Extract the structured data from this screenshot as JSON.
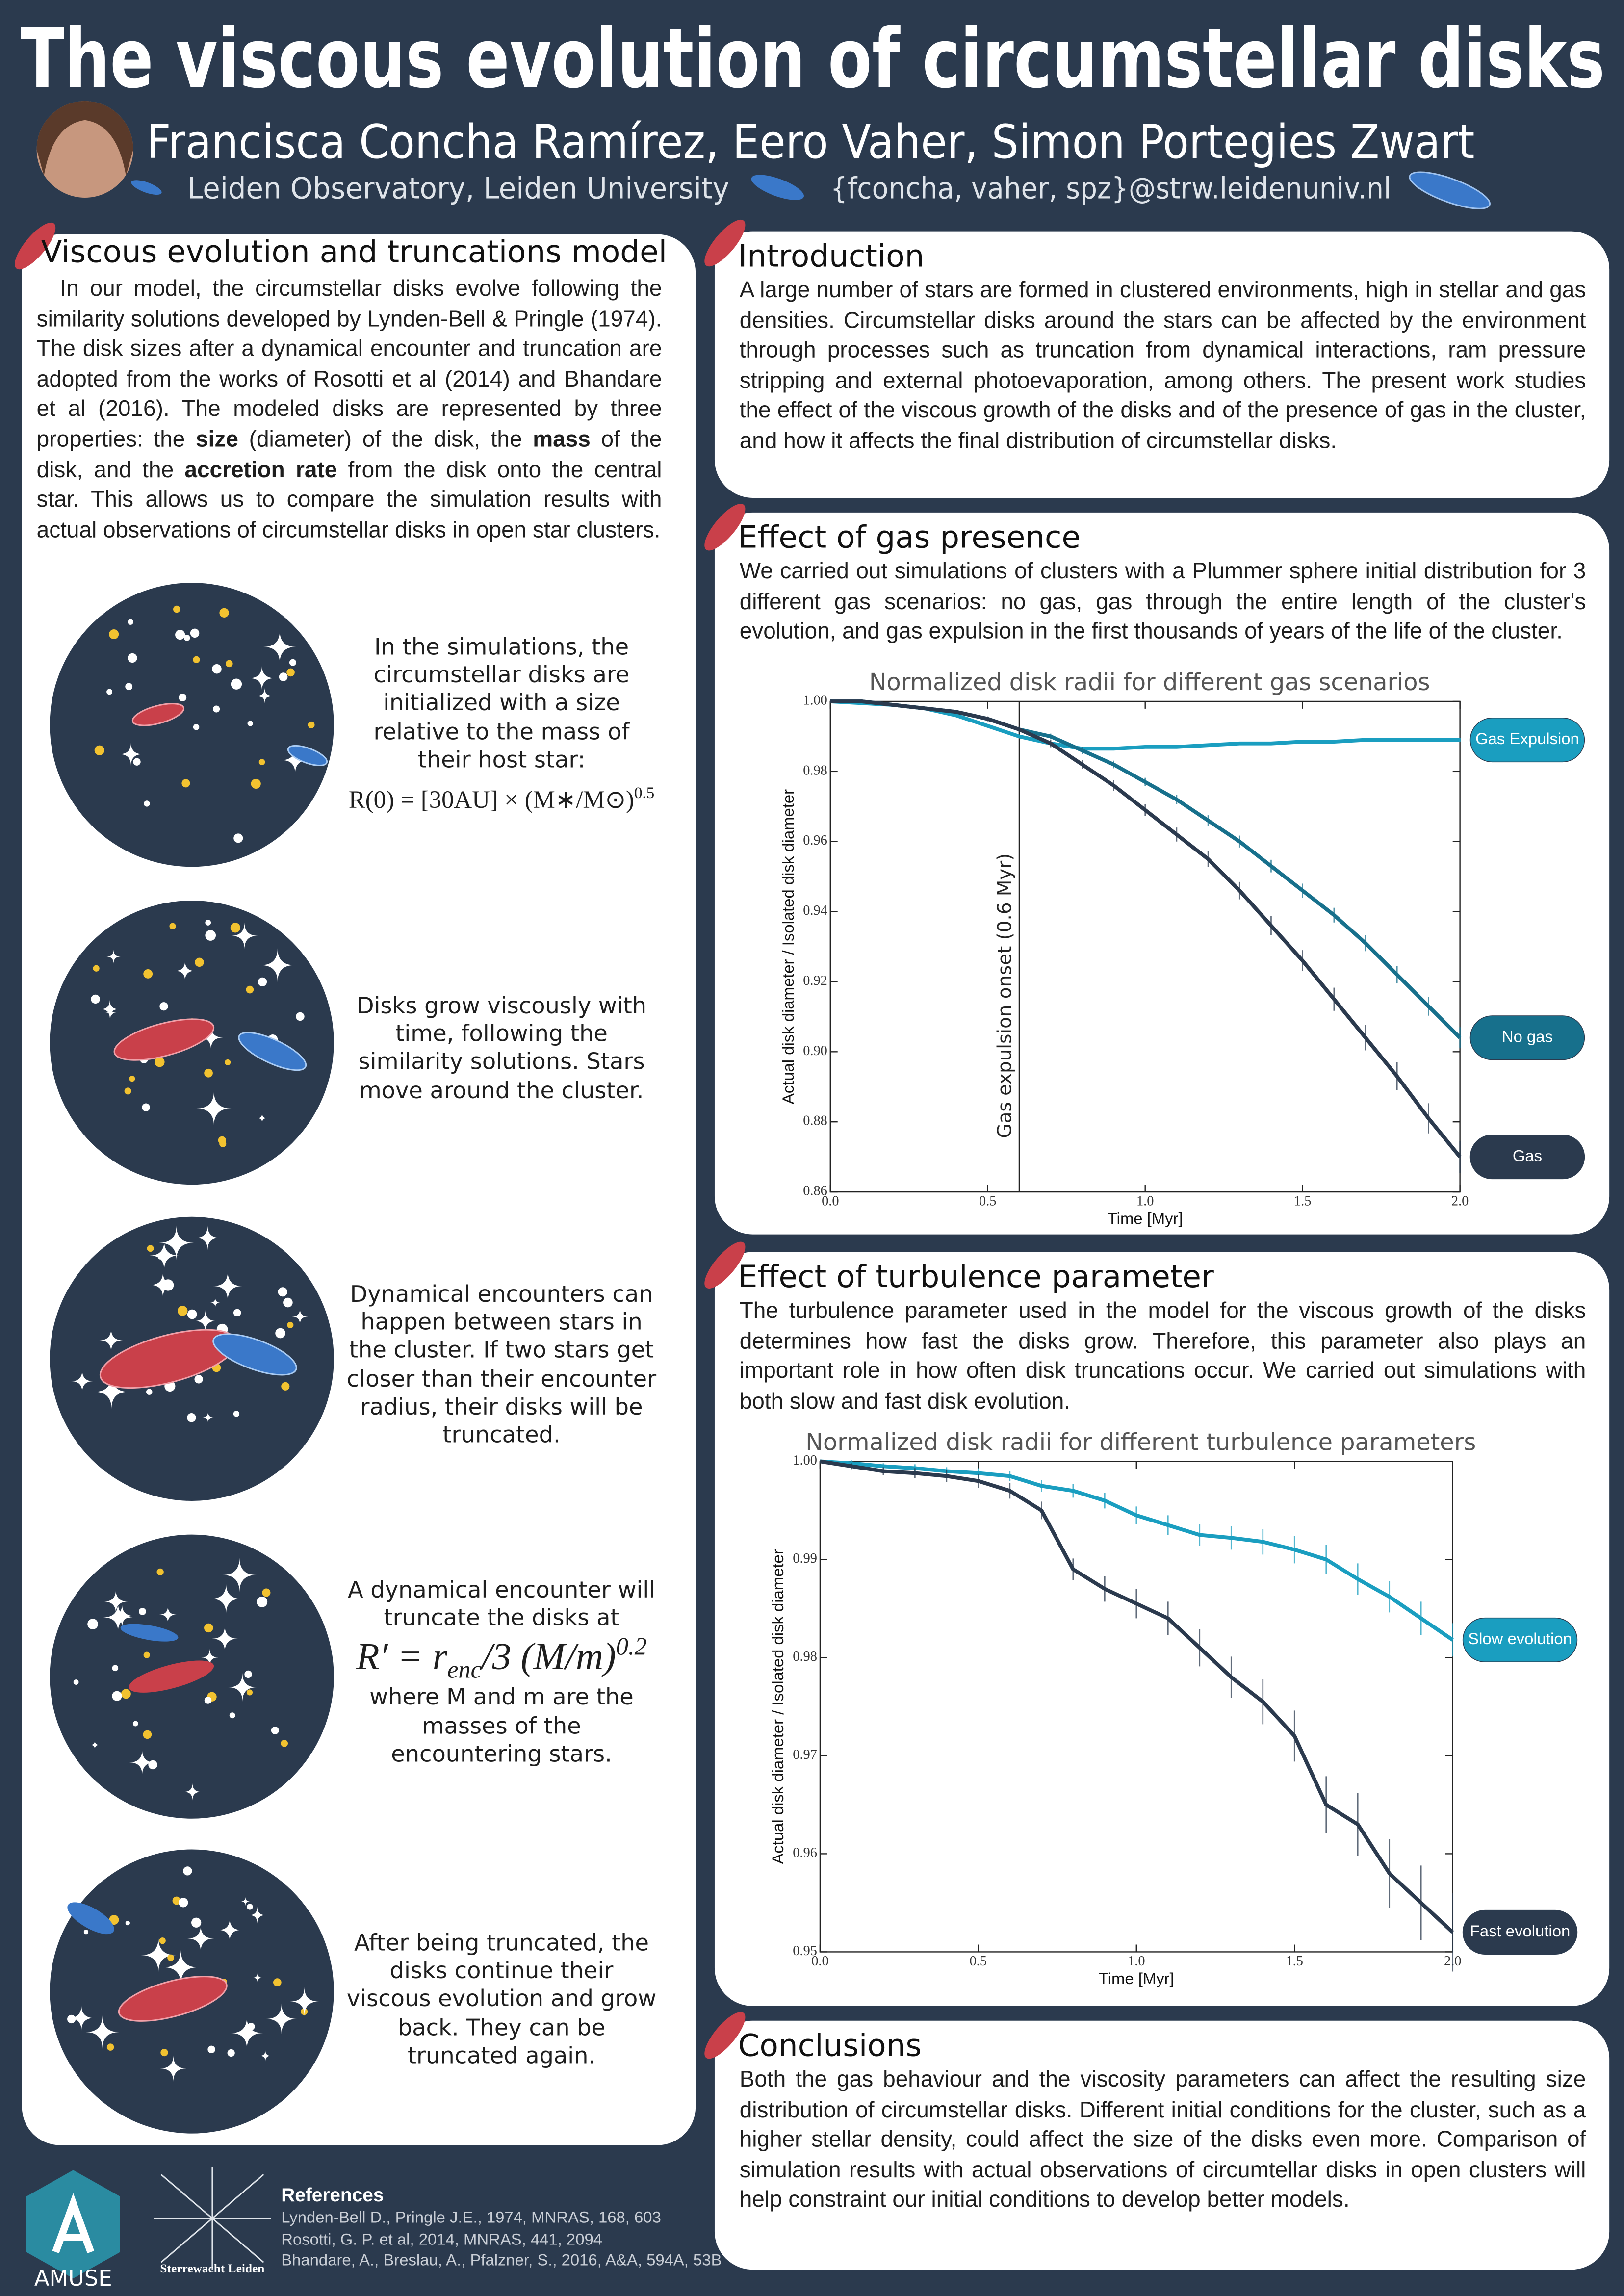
{
  "header": {
    "title": "The viscous evolution of circumstellar disks",
    "authors": "Francisca Concha Ramírez, Eero Vaher, Simon Portegies Zwart",
    "affiliation": "Leiden Observatory, Leiden University",
    "emails": "{fconcha, vaher, spz}@strw.leidenuniv.nl"
  },
  "sections": {
    "model": {
      "heading": "Viscous evolution and truncations model",
      "paragraph": [
        "In our model, the circumstellar disks evolve following the similarity solutions developed by Lynden-Bell & Pringle (1974). The disk sizes after a dynamical encounter and truncation are adopted from the works of Rosotti et al (2014) and Bhandare et al (2016). The modeled disks are represented by three properties: the ",
        "size",
        " (diameter) of the disk, the ",
        "mass",
        " of the disk, and the ",
        "accretion rate",
        " from the disk onto the central star. This allows us to compare the simulation results with actual observations of circumstellar disks in open star clusters."
      ],
      "panels": [
        {
          "text": "In the simulations, the circumstellar disks are initialized with a size relative to the mass of their host star:",
          "formula": [
            "R(0) = [30AU] × (M∗/M⊙)",
            "0.5"
          ]
        },
        {
          "text": "Disks grow viscously with time, following the similarity solutions. Stars move around the cluster."
        },
        {
          "text": "Dynamical encounters can happen between stars in the cluster. If two stars get closer than their encounter radius, their disks will be truncated."
        },
        {
          "text": "A dynamical encounter will truncate the disks at",
          "formula": [
            "R′ = r",
            "enc",
            "/3 (M/m)",
            "0.2"
          ],
          "text_after": "where M and m are the masses of the encountering stars."
        },
        {
          "text": "After being truncated, the disks continue their viscous evolution and grow back. They can be truncated again."
        }
      ]
    },
    "introduction": {
      "heading": "Introduction",
      "text": "A large number of stars are formed in clustered environments, high in stellar and gas densities. Circumstellar disks around the stars can be affected by the environment through processes such as truncation from dynamical interactions, ram pressure stripping and external photoevaporation, among others. The present work studies the effect of the viscous growth of the disks and of the presence of gas in the cluster, and how it affects the final distribution of circumstellar disks."
    },
    "gas": {
      "heading": "Effect of gas presence",
      "text": "We carried out simulations of clusters with a Plummer sphere initial distribution for 3 different gas scenarios: no gas, gas through the entire length of the cluster's evolution, and gas expulsion in the first thousands of years of the life of the cluster."
    },
    "turbulence": {
      "heading": "Effect of turbulence parameter",
      "text": "The turbulence parameter used in the model for the viscous growth of the disks determines how fast the disks grow. Therefore, this parameter also plays an important role in how often disk truncations occur. We carried out simulations with both slow and fast disk evolution."
    },
    "conclusions": {
      "heading": "Conclusions",
      "text": "Both the gas behaviour and the viscosity parameters can affect the resulting size distribution of circumstellar disks. Different initial conditions for the cluster, such as a higher stellar density, could affect the size of the disks even more. Comparison of simulation results with actual observations of circumtellar disks in open clusters will help constraint our initial conditions to develop better models."
    }
  },
  "references": {
    "heading": "References",
    "items": [
      "Lynden-Bell D., Pringle J.E., 1974, MNRAS, 168, 603",
      "Rosotti, G. P. et al, 2014, MNRAS, 441, 2094",
      "Bhandare, A., Breslau, A., Pfalzner, S., 2016, A&A, 594A, 53B"
    ]
  },
  "logos": {
    "amuse": "AMUSE",
    "sterrewacht": "Sterrewacht Leiden"
  },
  "chart_data": [
    {
      "type": "line",
      "title": "Normalized disk radii for different gas scenarios",
      "x_label": "Time [Myr]",
      "y_label": "Actual disk diameter / Isolated disk diameter",
      "x": [
        0,
        0.1,
        0.2,
        0.3,
        0.4,
        0.5,
        0.6,
        0.7,
        0.8,
        0.9,
        1,
        1.1,
        1.2,
        1.3,
        1.4,
        1.5,
        1.6,
        1.7,
        1.8,
        1.9,
        2
      ],
      "xlim": [
        0,
        2
      ],
      "ylim": [
        0.86,
        1
      ],
      "xticks": [
        {
          "value": 0,
          "label": "0.0"
        },
        0.5,
        {
          "value": 1,
          "label": "1.0"
        },
        1.5,
        {
          "value": 2,
          "label": "2.0"
        }
      ],
      "yticks": [
        0.86,
        0.88,
        {
          "value": 0.9,
          "label": "0.90"
        },
        0.92,
        0.94,
        0.96,
        0.98,
        {
          "value": 1,
          "label": "1.00"
        }
      ],
      "vline": 0.6,
      "annotation": "Gas expulsion onset (0.6 Myr)",
      "legend_position": "right",
      "series": [
        {
          "name": "Gas Expulsion",
          "color": "#1a9ec0",
          "values": [
            1,
            0.9995,
            0.999,
            0.998,
            0.996,
            0.993,
            0.99,
            0.988,
            0.9865,
            0.9865,
            0.987,
            0.987,
            0.9875,
            0.988,
            0.988,
            0.9885,
            0.9885,
            0.989,
            0.989,
            0.989,
            0.989
          ],
          "errors": [
            0,
            0.0002,
            0.0003,
            0.0003,
            0.0004,
            0.0004,
            0.0004,
            0.0005,
            0.0005,
            0.0005,
            0.0005,
            0.0005,
            0.0005,
            0.0005,
            0.0005,
            0.0005,
            0.0005,
            0.0005,
            0.0005,
            0.0005,
            0.0005
          ]
        },
        {
          "name": "No gas",
          "color": "#17708c",
          "values": [
            1,
            1,
            0.999,
            0.998,
            0.997,
            0.995,
            0.992,
            0.99,
            0.986,
            0.982,
            0.977,
            0.972,
            0.966,
            0.96,
            0.953,
            0.946,
            0.939,
            0.931,
            0.922,
            0.913,
            0.904
          ],
          "errors": [
            0,
            0.0002,
            0.0003,
            0.0004,
            0.0005,
            0.0006,
            0.0007,
            0.0008,
            0.001,
            0.0011,
            0.0012,
            0.0014,
            0.0015,
            0.0017,
            0.0018,
            0.002,
            0.0021,
            0.0023,
            0.0025,
            0.0027,
            0.003
          ]
        },
        {
          "name": "Gas",
          "color": "#2b3a4e",
          "values": [
            1,
            1,
            0.999,
            0.998,
            0.997,
            0.995,
            0.992,
            0.988,
            0.982,
            0.976,
            0.969,
            0.962,
            0.955,
            0.946,
            0.936,
            0.926,
            0.915,
            0.904,
            0.893,
            0.881,
            0.87
          ],
          "errors": [
            0,
            0.0002,
            0.0003,
            0.0004,
            0.0005,
            0.0007,
            0.0009,
            0.0011,
            0.0013,
            0.0015,
            0.0017,
            0.002,
            0.0022,
            0.0025,
            0.0027,
            0.003,
            0.0033,
            0.0036,
            0.004,
            0.0043,
            0.0046
          ]
        }
      ]
    },
    {
      "type": "line",
      "title": "Normalized disk radii for different turbulence parameters",
      "x_label": "Time [Myr]",
      "y_label": "Actual disk diameter / Isolated disk diameter",
      "x": [
        0,
        0.1,
        0.2,
        0.3,
        0.4,
        0.5,
        0.6,
        0.7,
        0.8,
        0.9,
        1,
        1.1,
        1.2,
        1.3,
        1.4,
        1.5,
        1.6,
        1.7,
        1.8,
        1.9,
        2
      ],
      "xlim": [
        0,
        2
      ],
      "ylim": [
        0.95,
        1
      ],
      "xticks": [
        {
          "value": 0,
          "label": "0.0"
        },
        0.5,
        {
          "value": 1,
          "label": "1.0"
        },
        1.5,
        {
          "value": 2,
          "label": "2.0"
        }
      ],
      "yticks": [
        0.95,
        0.96,
        0.97,
        0.98,
        0.99,
        {
          "value": 1,
          "label": "1.00"
        }
      ],
      "legend_position": "right",
      "series": [
        {
          "name": "Slow evolution",
          "color": "#1a9ec0",
          "values": [
            1,
            0.9998,
            0.9995,
            0.9993,
            0.999,
            0.9988,
            0.9985,
            0.9975,
            0.997,
            0.996,
            0.9945,
            0.9935,
            0.9925,
            0.9922,
            0.9918,
            0.991,
            0.99,
            0.988,
            0.9862,
            0.984,
            0.9818
          ],
          "errors": [
            0,
            0.0003,
            0.0003,
            0.0004,
            0.0004,
            0.0005,
            0.0005,
            0.0006,
            0.0007,
            0.0008,
            0.0009,
            0.001,
            0.0011,
            0.0012,
            0.0013,
            0.0014,
            0.0015,
            0.0016,
            0.0016,
            0.0017,
            0.0017
          ]
        },
        {
          "name": "Fast evolution",
          "color": "#2b3a4e",
          "values": [
            1,
            0.9995,
            0.999,
            0.9988,
            0.9985,
            0.998,
            0.997,
            0.995,
            0.989,
            0.987,
            0.9855,
            0.984,
            0.981,
            0.978,
            0.9755,
            0.972,
            0.965,
            0.963,
            0.958,
            0.955,
            0.952
          ],
          "errors": [
            0,
            0.0003,
            0.0004,
            0.0005,
            0.0006,
            0.0007,
            0.0008,
            0.0009,
            0.0011,
            0.0013,
            0.0015,
            0.0017,
            0.0019,
            0.0021,
            0.0023,
            0.0026,
            0.0029,
            0.0032,
            0.0035,
            0.0038,
            0.004
          ]
        }
      ]
    }
  ]
}
